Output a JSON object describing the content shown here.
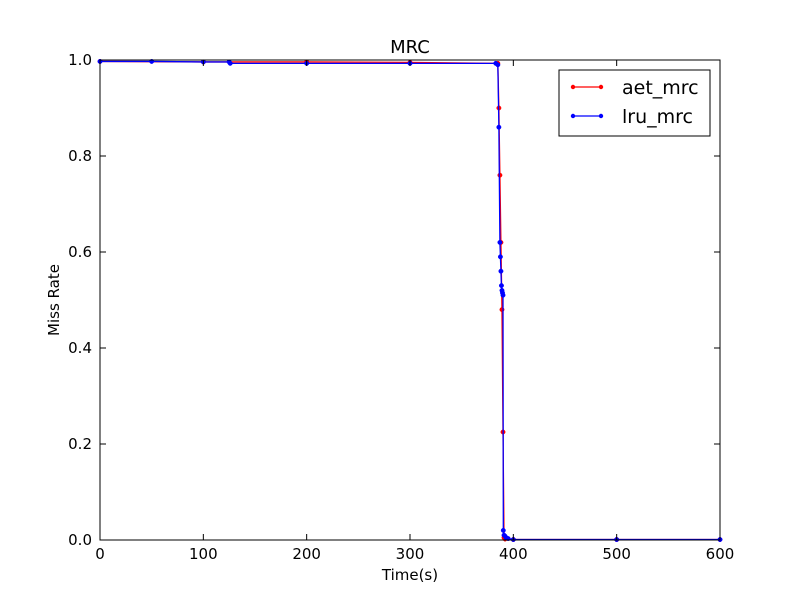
{
  "chart_data": {
    "type": "line",
    "title": "MRC",
    "xlabel": "Time(s)",
    "ylabel": "Miss Rate",
    "xlim": [
      0,
      600
    ],
    "ylim": [
      0.0,
      1.0
    ],
    "xticks": [
      0,
      100,
      200,
      300,
      400,
      500,
      600
    ],
    "xtick_labels": [
      "0",
      "100",
      "200",
      "300",
      "400",
      "500",
      "600"
    ],
    "yticks": [
      0.0,
      0.2,
      0.4,
      0.6,
      0.8,
      1.0
    ],
    "ytick_labels": [
      "0.0",
      "0.2",
      "0.4",
      "0.6",
      "0.8",
      "1.0"
    ],
    "grid": false,
    "legend_position": "top-right",
    "series": [
      {
        "name": "aet_mrc",
        "color": "#ff0000",
        "x": [
          0,
          100,
          200,
          300,
          385,
          386,
          387,
          388,
          389,
          390,
          391,
          392,
          400,
          500,
          600
        ],
        "y": [
          0.997,
          0.996,
          0.996,
          0.995,
          0.993,
          0.9,
          0.76,
          0.62,
          0.48,
          0.225,
          0.005,
          0.002,
          0.001,
          0.001,
          0.001
        ]
      },
      {
        "name": "lru_mrc",
        "color": "#0000ff",
        "x": [
          0,
          50,
          100,
          125,
          126,
          200,
          300,
          383,
          385,
          386,
          387,
          387.5,
          388,
          388.5,
          389,
          389.5,
          390,
          390.3,
          391,
          392,
          393,
          395,
          400,
          500,
          600
        ],
        "y": [
          0.997,
          0.997,
          0.996,
          0.996,
          0.993,
          0.993,
          0.993,
          0.993,
          0.99,
          0.86,
          0.62,
          0.59,
          0.56,
          0.53,
          0.52,
          0.515,
          0.51,
          0.02,
          0.01,
          0.008,
          0.005,
          0.003,
          0.001,
          0.001,
          0.001
        ]
      }
    ]
  }
}
